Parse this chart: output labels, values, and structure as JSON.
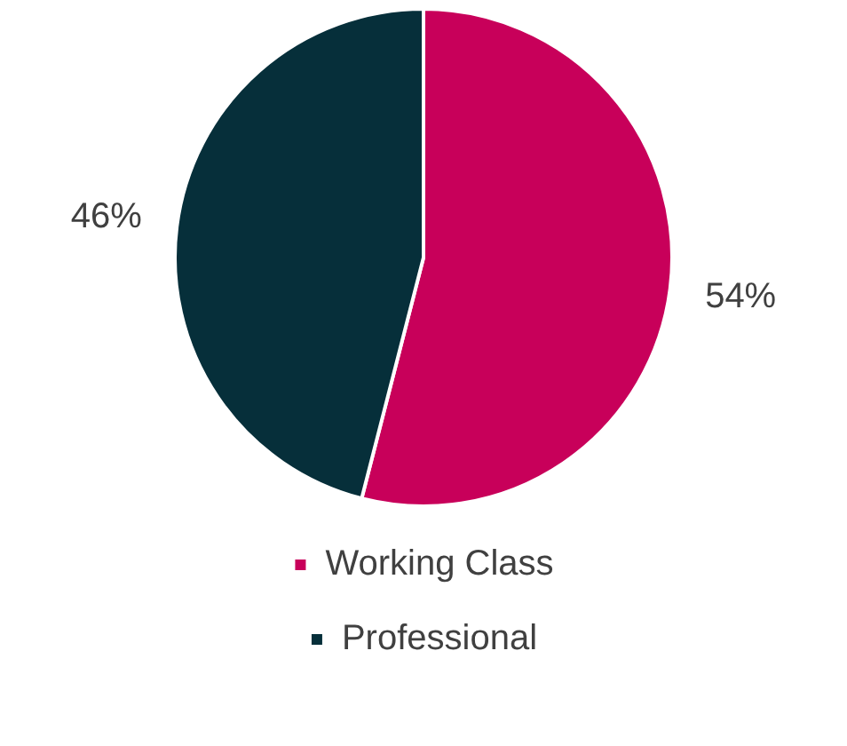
{
  "chart_data": {
    "type": "pie",
    "categories": [
      "Working Class",
      "Professional"
    ],
    "values": [
      54,
      46
    ],
    "colors": [
      "#c8005a",
      "#062f3a"
    ],
    "value_labels": [
      "54%",
      "46%"
    ],
    "legend": "bottom"
  }
}
